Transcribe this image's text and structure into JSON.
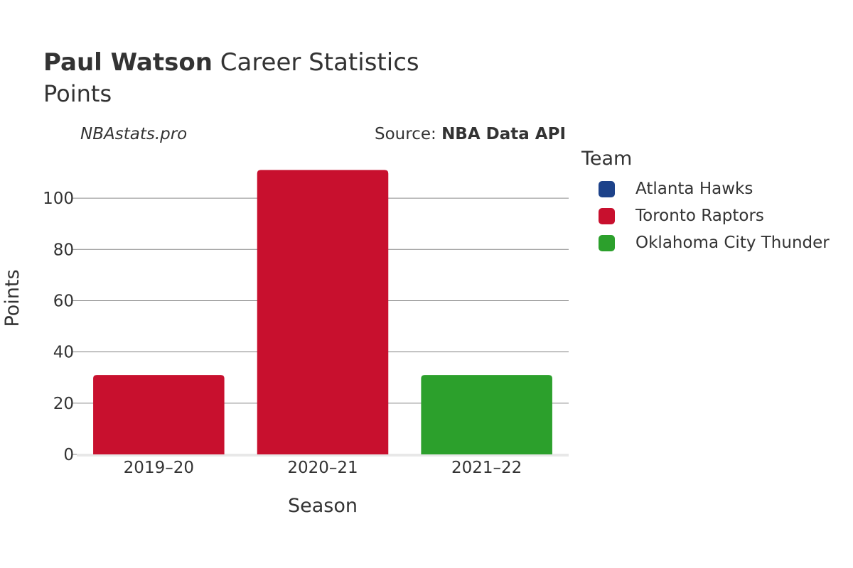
{
  "header": {
    "player": "Paul Watson",
    "title_rest": " Career Statistics",
    "subtitle": "Points",
    "watermark": "NBAstats.pro",
    "source_prefix": "Source: ",
    "source_name": "NBA Data API"
  },
  "legend": {
    "title": "Team",
    "items": [
      {
        "label": "Atlanta Hawks",
        "color": "#1d428a"
      },
      {
        "label": "Toronto Raptors",
        "color": "#c8102e"
      },
      {
        "label": "Oklahoma City Thunder",
        "color": "#2ca02c"
      }
    ]
  },
  "chart_data": {
    "type": "bar",
    "categories": [
      "2019–20",
      "2020–21",
      "2021–22"
    ],
    "values": [
      31,
      111,
      31
    ],
    "bar_teams": [
      "Toronto Raptors",
      "Toronto Raptors",
      "Oklahoma City Thunder"
    ],
    "xlabel": "Season",
    "ylabel": "Points",
    "ylim": [
      0,
      115
    ],
    "yticks": [
      0,
      20,
      40,
      60,
      80,
      100
    ],
    "grid": true,
    "legend_position": "right"
  }
}
